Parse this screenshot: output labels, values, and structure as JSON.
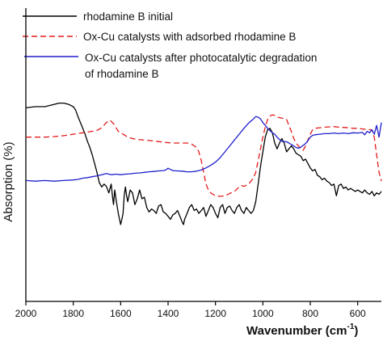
{
  "chart_data": {
    "type": "line",
    "xlabel": "Wavenumber (cm",
    "xlabel_sup": "-1",
    "xlabel_close": ")",
    "ylabel": "Absorption (%)",
    "xlim": [
      2000,
      500
    ],
    "x_reversed": true,
    "y_ticks_shown": false,
    "x_ticks": [
      2000,
      1800,
      1600,
      1400,
      1200,
      1000,
      800,
      600
    ],
    "legend_position": "top",
    "series": [
      {
        "name": "rhodamine B initial",
        "color": "#000000",
        "style": "solid",
        "points": [
          [
            2000,
            0.66
          ],
          [
            1960,
            0.664
          ],
          [
            1920,
            0.664
          ],
          [
            1880,
            0.672
          ],
          [
            1860,
            0.676
          ],
          [
            1840,
            0.676
          ],
          [
            1820,
            0.672
          ],
          [
            1800,
            0.664
          ],
          [
            1790,
            0.652
          ],
          [
            1780,
            0.63
          ],
          [
            1770,
            0.61
          ],
          [
            1760,
            0.59
          ],
          [
            1750,
            0.57
          ],
          [
            1740,
            0.545
          ],
          [
            1730,
            0.525
          ],
          [
            1720,
            0.5
          ],
          [
            1710,
            0.47
          ],
          [
            1700,
            0.44
          ],
          [
            1690,
            0.405
          ],
          [
            1680,
            0.39
          ],
          [
            1670,
            0.4
          ],
          [
            1660,
            0.392
          ],
          [
            1650,
            0.37
          ],
          [
            1640,
            0.4
          ],
          [
            1635,
            0.36
          ],
          [
            1630,
            0.33
          ],
          [
            1625,
            0.38
          ],
          [
            1620,
            0.35
          ],
          [
            1610,
            0.3
          ],
          [
            1600,
            0.262
          ],
          [
            1595,
            0.28
          ],
          [
            1590,
            0.3
          ],
          [
            1585,
            0.36
          ],
          [
            1580,
            0.39
          ],
          [
            1575,
            0.36
          ],
          [
            1570,
            0.34
          ],
          [
            1560,
            0.38
          ],
          [
            1550,
            0.37
          ],
          [
            1540,
            0.33
          ],
          [
            1530,
            0.35
          ],
          [
            1520,
            0.38
          ],
          [
            1510,
            0.35
          ],
          [
            1500,
            0.355
          ],
          [
            1490,
            0.32
          ],
          [
            1480,
            0.305
          ],
          [
            1470,
            0.315
          ],
          [
            1460,
            0.31
          ],
          [
            1450,
            0.3
          ],
          [
            1440,
            0.325
          ],
          [
            1430,
            0.33
          ],
          [
            1420,
            0.305
          ],
          [
            1410,
            0.3
          ],
          [
            1400,
            0.29
          ],
          [
            1390,
            0.28
          ],
          [
            1380,
            0.295
          ],
          [
            1370,
            0.3
          ],
          [
            1360,
            0.31
          ],
          [
            1350,
            0.29
          ],
          [
            1340,
            0.27
          ],
          [
            1335,
            0.262
          ],
          [
            1330,
            0.28
          ],
          [
            1320,
            0.3
          ],
          [
            1310,
            0.32
          ],
          [
            1300,
            0.33
          ],
          [
            1290,
            0.31
          ],
          [
            1280,
            0.315
          ],
          [
            1270,
            0.3
          ],
          [
            1260,
            0.31
          ],
          [
            1250,
            0.32
          ],
          [
            1240,
            0.29
          ],
          [
            1230,
            0.31
          ],
          [
            1220,
            0.33
          ],
          [
            1210,
            0.32
          ],
          [
            1200,
            0.3
          ],
          [
            1190,
            0.285
          ],
          [
            1180,
            0.32
          ],
          [
            1170,
            0.33
          ],
          [
            1160,
            0.3
          ],
          [
            1150,
            0.32
          ],
          [
            1140,
            0.325
          ],
          [
            1130,
            0.31
          ],
          [
            1120,
            0.3
          ],
          [
            1110,
            0.32
          ],
          [
            1100,
            0.33
          ],
          [
            1090,
            0.31
          ],
          [
            1080,
            0.3
          ],
          [
            1070,
            0.32
          ],
          [
            1060,
            0.31
          ],
          [
            1050,
            0.3
          ],
          [
            1040,
            0.31
          ],
          [
            1030,
            0.34
          ],
          [
            1020,
            0.4
          ],
          [
            1010,
            0.46
          ],
          [
            1000,
            0.51
          ],
          [
            990,
            0.56
          ],
          [
            980,
            0.585
          ],
          [
            970,
            0.59
          ],
          [
            960,
            0.575
          ],
          [
            950,
            0.54
          ],
          [
            940,
            0.52
          ],
          [
            930,
            0.54
          ],
          [
            920,
            0.555
          ],
          [
            910,
            0.54
          ],
          [
            900,
            0.51
          ],
          [
            890,
            0.52
          ],
          [
            880,
            0.53
          ],
          [
            870,
            0.52
          ],
          [
            860,
            0.505
          ],
          [
            850,
            0.5
          ],
          [
            840,
            0.495
          ],
          [
            830,
            0.48
          ],
          [
            820,
            0.485
          ],
          [
            810,
            0.47
          ],
          [
            800,
            0.455
          ],
          [
            790,
            0.445
          ],
          [
            780,
            0.45
          ],
          [
            770,
            0.43
          ],
          [
            760,
            0.425
          ],
          [
            750,
            0.415
          ],
          [
            740,
            0.42
          ],
          [
            730,
            0.41
          ],
          [
            720,
            0.405
          ],
          [
            710,
            0.395
          ],
          [
            700,
            0.4
          ],
          [
            690,
            0.36
          ],
          [
            680,
            0.395
          ],
          [
            670,
            0.4
          ],
          [
            660,
            0.385
          ],
          [
            650,
            0.39
          ],
          [
            640,
            0.38
          ],
          [
            630,
            0.385
          ],
          [
            620,
            0.38
          ],
          [
            610,
            0.375
          ],
          [
            600,
            0.38
          ],
          [
            590,
            0.375
          ],
          [
            580,
            0.37
          ],
          [
            570,
            0.38
          ],
          [
            560,
            0.37
          ],
          [
            550,
            0.365
          ],
          [
            540,
            0.375
          ],
          [
            530,
            0.36
          ],
          [
            520,
            0.37
          ],
          [
            510,
            0.365
          ],
          [
            500,
            0.375
          ]
        ]
      },
      {
        "name": "Ox-Cu catalysts with adsorbed rhodamine B",
        "color": "#e41a1c",
        "style": "dash",
        "points": [
          [
            2000,
            0.56
          ],
          [
            1960,
            0.56
          ],
          [
            1920,
            0.56
          ],
          [
            1880,
            0.562
          ],
          [
            1840,
            0.565
          ],
          [
            1800,
            0.57
          ],
          [
            1760,
            0.575
          ],
          [
            1720,
            0.58
          ],
          [
            1700,
            0.583
          ],
          [
            1680,
            0.592
          ],
          [
            1660,
            0.61
          ],
          [
            1645,
            0.618
          ],
          [
            1630,
            0.606
          ],
          [
            1610,
            0.58
          ],
          [
            1590,
            0.57
          ],
          [
            1570,
            0.56
          ],
          [
            1550,
            0.555
          ],
          [
            1530,
            0.552
          ],
          [
            1500,
            0.55
          ],
          [
            1470,
            0.548
          ],
          [
            1440,
            0.545
          ],
          [
            1410,
            0.542
          ],
          [
            1380,
            0.54
          ],
          [
            1350,
            0.54
          ],
          [
            1320,
            0.54
          ],
          [
            1300,
            0.536
          ],
          [
            1280,
            0.525
          ],
          [
            1270,
            0.51
          ],
          [
            1260,
            0.48
          ],
          [
            1250,
            0.44
          ],
          [
            1240,
            0.4
          ],
          [
            1230,
            0.38
          ],
          [
            1220,
            0.37
          ],
          [
            1210,
            0.365
          ],
          [
            1200,
            0.36
          ],
          [
            1180,
            0.358
          ],
          [
            1160,
            0.36
          ],
          [
            1140,
            0.368
          ],
          [
            1120,
            0.375
          ],
          [
            1100,
            0.39
          ],
          [
            1090,
            0.395
          ],
          [
            1080,
            0.392
          ],
          [
            1060,
            0.4
          ],
          [
            1040,
            0.42
          ],
          [
            1030,
            0.44
          ],
          [
            1020,
            0.48
          ],
          [
            1010,
            0.52
          ],
          [
            1000,
            0.56
          ],
          [
            990,
            0.595
          ],
          [
            980,
            0.62
          ],
          [
            970,
            0.632
          ],
          [
            960,
            0.636
          ],
          [
            950,
            0.634
          ],
          [
            940,
            0.628
          ],
          [
            920,
            0.625
          ],
          [
            900,
            0.62
          ],
          [
            890,
            0.6
          ],
          [
            880,
            0.58
          ],
          [
            870,
            0.556
          ],
          [
            860,
            0.54
          ],
          [
            850,
            0.53
          ],
          [
            840,
            0.52
          ],
          [
            830,
            0.515
          ],
          [
            820,
            0.53
          ],
          [
            810,
            0.55
          ],
          [
            800,
            0.57
          ],
          [
            790,
            0.585
          ],
          [
            780,
            0.59
          ],
          [
            760,
            0.592
          ],
          [
            740,
            0.594
          ],
          [
            720,
            0.595
          ],
          [
            700,
            0.596
          ],
          [
            680,
            0.594
          ],
          [
            660,
            0.593
          ],
          [
            640,
            0.592
          ],
          [
            620,
            0.59
          ],
          [
            600,
            0.59
          ],
          [
            580,
            0.588
          ],
          [
            560,
            0.586
          ],
          [
            540,
            0.585
          ],
          [
            530,
            0.56
          ],
          [
            520,
            0.5
          ],
          [
            510,
            0.44
          ],
          [
            500,
            0.41
          ]
        ]
      },
      {
        "name": "Ox-Cu catalysts after photocatalytic degradation of rhodamine B",
        "color": "#1f1fcc",
        "style": "solid",
        "points": [
          [
            2000,
            0.412
          ],
          [
            1960,
            0.41
          ],
          [
            1920,
            0.412
          ],
          [
            1880,
            0.41
          ],
          [
            1840,
            0.412
          ],
          [
            1800,
            0.414
          ],
          [
            1780,
            0.416
          ],
          [
            1760,
            0.42
          ],
          [
            1740,
            0.422
          ],
          [
            1720,
            0.425
          ],
          [
            1700,
            0.428
          ],
          [
            1680,
            0.432
          ],
          [
            1660,
            0.436
          ],
          [
            1640,
            0.432
          ],
          [
            1620,
            0.434
          ],
          [
            1600,
            0.432
          ],
          [
            1580,
            0.434
          ],
          [
            1560,
            0.435
          ],
          [
            1540,
            0.437
          ],
          [
            1520,
            0.438
          ],
          [
            1500,
            0.44
          ],
          [
            1480,
            0.442
          ],
          [
            1460,
            0.443
          ],
          [
            1440,
            0.445
          ],
          [
            1420,
            0.446
          ],
          [
            1410,
            0.448
          ],
          [
            1400,
            0.454
          ],
          [
            1390,
            0.45
          ],
          [
            1380,
            0.446
          ],
          [
            1360,
            0.445
          ],
          [
            1340,
            0.444
          ],
          [
            1320,
            0.442
          ],
          [
            1300,
            0.442
          ],
          [
            1280,
            0.444
          ],
          [
            1260,
            0.448
          ],
          [
            1240,
            0.455
          ],
          [
            1220,
            0.464
          ],
          [
            1200,
            0.475
          ],
          [
            1180,
            0.49
          ],
          [
            1160,
            0.51
          ],
          [
            1140,
            0.53
          ],
          [
            1120,
            0.55
          ],
          [
            1100,
            0.57
          ],
          [
            1080,
            0.59
          ],
          [
            1060,
            0.608
          ],
          [
            1040,
            0.622
          ],
          [
            1030,
            0.63
          ],
          [
            1020,
            0.628
          ],
          [
            1010,
            0.622
          ],
          [
            1000,
            0.61
          ],
          [
            990,
            0.6
          ],
          [
            980,
            0.59
          ],
          [
            970,
            0.582
          ],
          [
            960,
            0.575
          ],
          [
            950,
            0.57
          ],
          [
            940,
            0.56
          ],
          [
            930,
            0.552
          ],
          [
            920,
            0.546
          ],
          [
            910,
            0.545
          ],
          [
            900,
            0.544
          ],
          [
            890,
            0.54
          ],
          [
            880,
            0.535
          ],
          [
            870,
            0.53
          ],
          [
            860,
            0.525
          ],
          [
            850,
            0.522
          ],
          [
            840,
            0.526
          ],
          [
            830,
            0.532
          ],
          [
            820,
            0.538
          ],
          [
            810,
            0.548
          ],
          [
            800,
            0.56
          ],
          [
            790,
            0.566
          ],
          [
            780,
            0.568
          ],
          [
            760,
            0.57
          ],
          [
            740,
            0.572
          ],
          [
            720,
            0.572
          ],
          [
            700,
            0.574
          ],
          [
            680,
            0.572
          ],
          [
            660,
            0.574
          ],
          [
            640,
            0.572
          ],
          [
            620,
            0.575
          ],
          [
            600,
            0.574
          ],
          [
            580,
            0.576
          ],
          [
            570,
            0.568
          ],
          [
            560,
            0.58
          ],
          [
            550,
            0.575
          ],
          [
            540,
            0.585
          ],
          [
            530,
            0.57
          ],
          [
            520,
            0.6
          ],
          [
            510,
            0.56
          ],
          [
            500,
            0.61
          ]
        ]
      }
    ]
  }
}
